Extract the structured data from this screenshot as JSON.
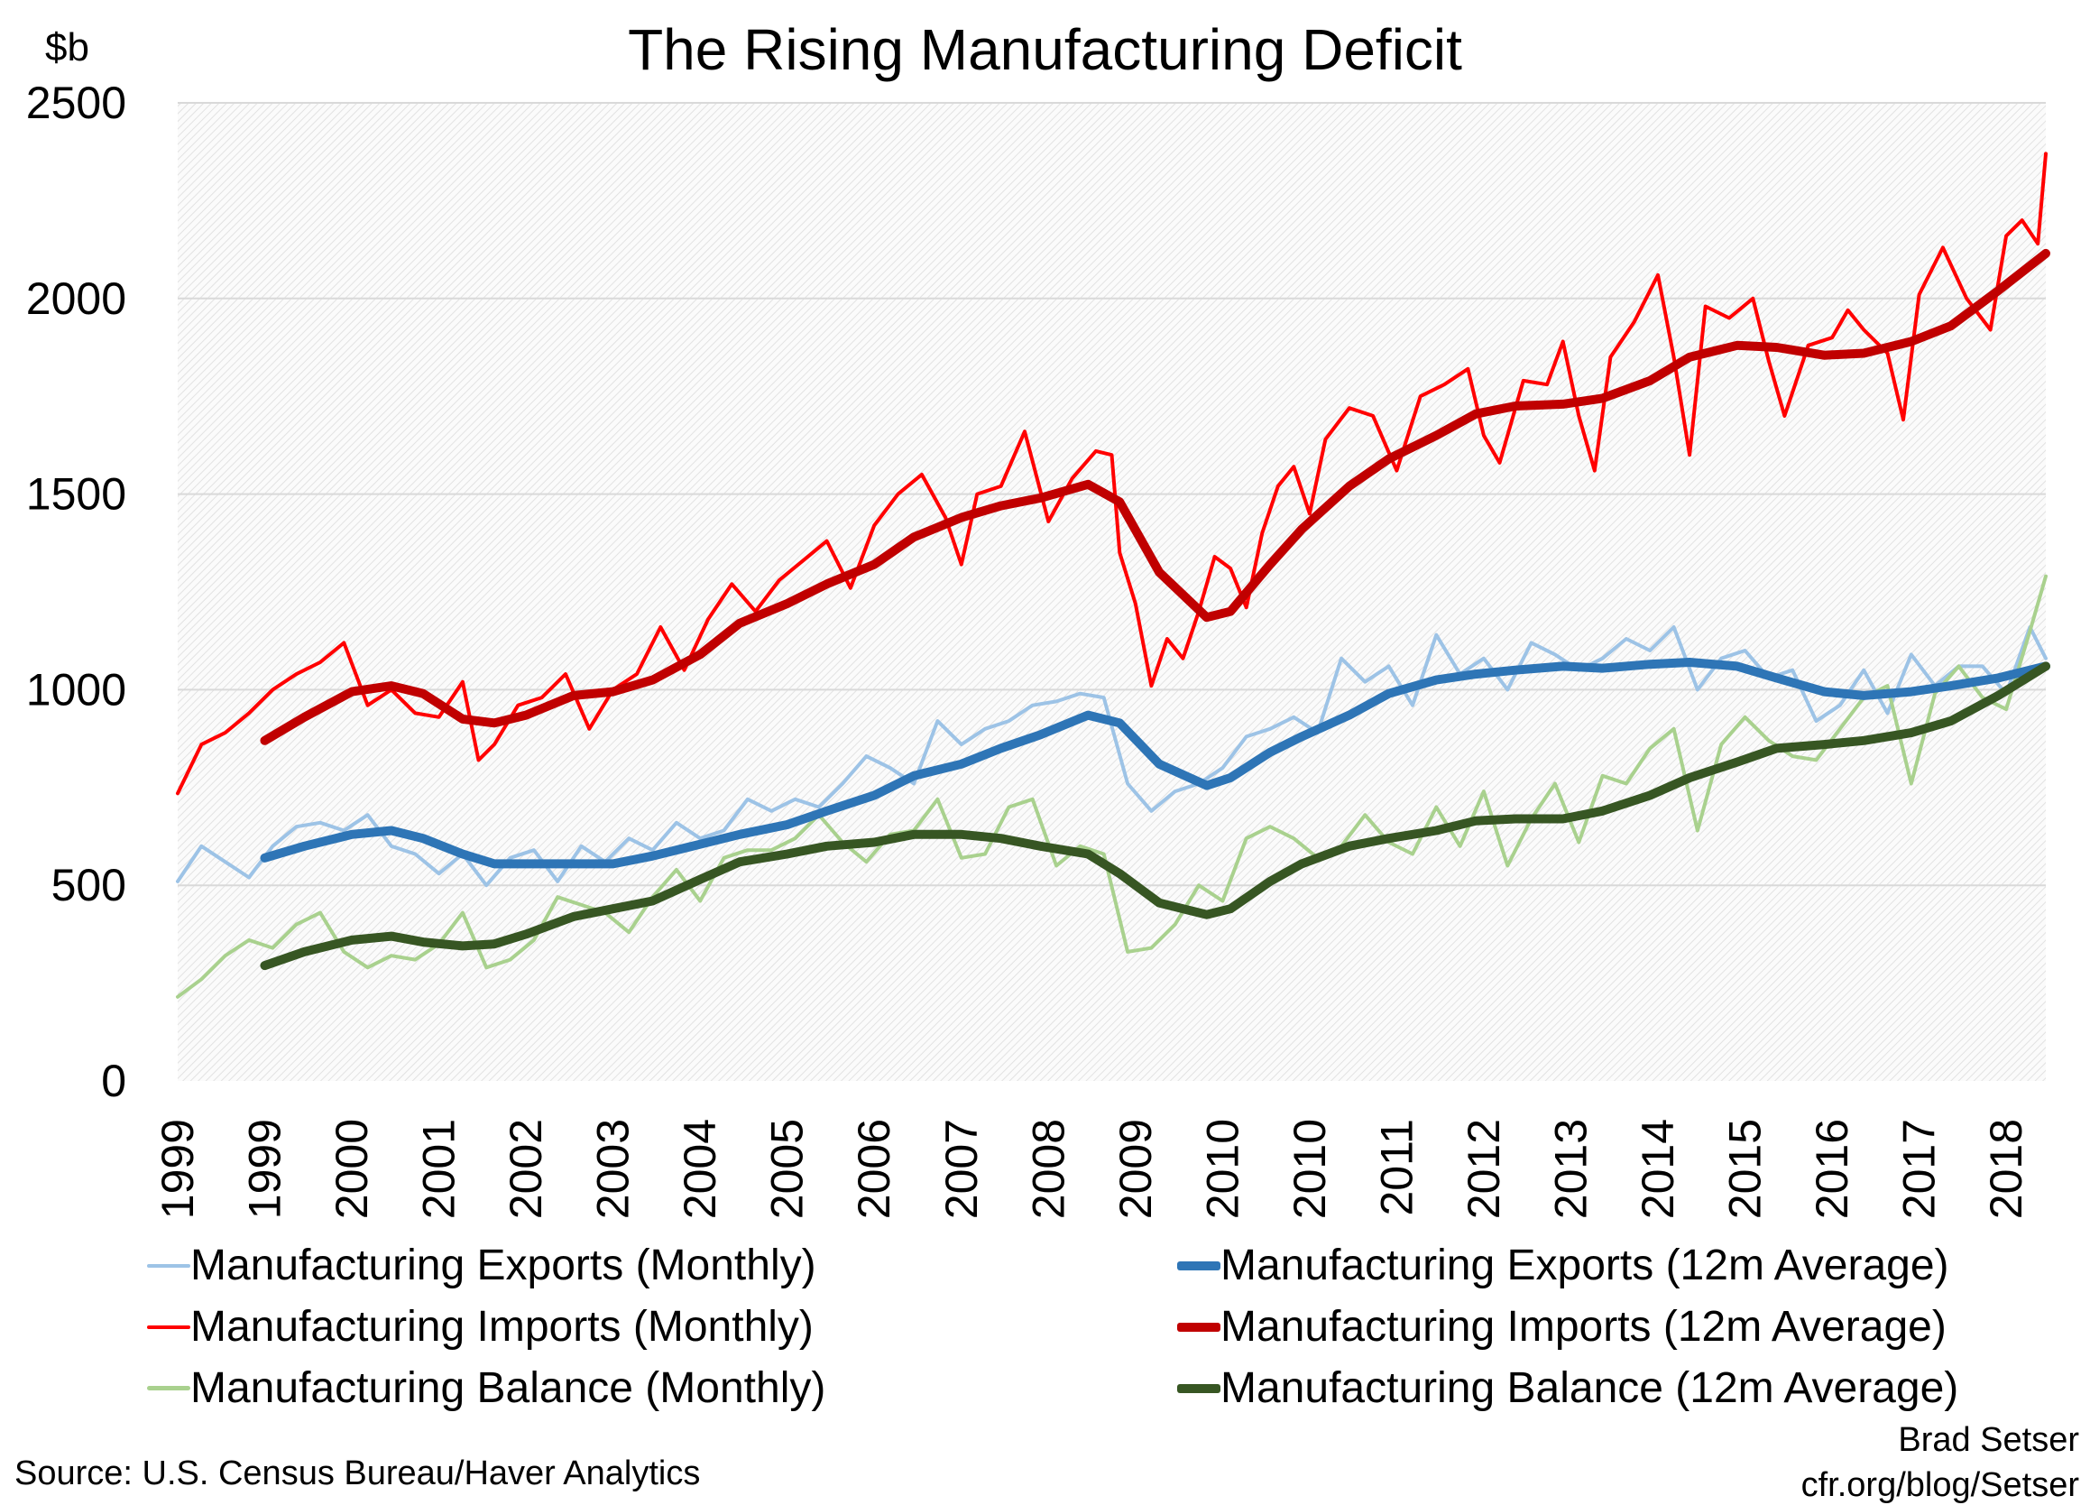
{
  "chart_data": {
    "type": "line",
    "title": "The Rising Manufacturing Deficit",
    "ylabel": "$b",
    "ylim": [
      0,
      2500
    ],
    "yticks": [
      0,
      500,
      1000,
      1500,
      2000,
      2500
    ],
    "xlim": [
      "1999-01",
      "2018-09"
    ],
    "xtick_dates": [
      "1999-01",
      "1999-12",
      "2000-11",
      "2001-10",
      "2002-09",
      "2003-08",
      "2004-07",
      "2005-06",
      "2006-05",
      "2007-04",
      "2008-03",
      "2009-02",
      "2010-01",
      "2010-12",
      "2011-11",
      "2012-10",
      "2013-09",
      "2014-08",
      "2015-07",
      "2016-06",
      "2017-05",
      "2018-04"
    ],
    "xtick_labels": [
      "1999",
      "1999",
      "2000",
      "2001",
      "2002",
      "2003",
      "2004",
      "2005",
      "2006",
      "2007",
      "2008",
      "2009",
      "2010",
      "2010",
      "2011",
      "2012",
      "2013",
      "2014",
      "2015",
      "2016",
      "2017",
      "2018"
    ],
    "grid": "horizontal",
    "legend_position": "bottom",
    "avg_dates": [
      "1999-12",
      "2000-05",
      "2000-11",
      "2001-04",
      "2001-08",
      "2002-01",
      "2002-05",
      "2002-09",
      "2003-03",
      "2003-08",
      "2004-01",
      "2004-07",
      "2004-12",
      "2005-06",
      "2005-11",
      "2006-05",
      "2006-10",
      "2007-04",
      "2007-09",
      "2008-02",
      "2008-08",
      "2008-12",
      "2009-05",
      "2009-11",
      "2010-02",
      "2010-07",
      "2010-11",
      "2011-05",
      "2011-10",
      "2012-04",
      "2012-09",
      "2013-02",
      "2013-08",
      "2014-01",
      "2014-07",
      "2014-12",
      "2015-06",
      "2015-11",
      "2016-05",
      "2016-10",
      "2017-04",
      "2017-09",
      "2018-03",
      "2018-09"
    ],
    "quarterly_dates": [
      "1999-01",
      "1999-04",
      "1999-07",
      "1999-10",
      "2000-01",
      "2000-04",
      "2000-07",
      "2000-10",
      "2001-01",
      "2001-04",
      "2001-07",
      "2001-10",
      "2002-01",
      "2002-04",
      "2002-07",
      "2002-10",
      "2003-01",
      "2003-04",
      "2003-07",
      "2003-10",
      "2004-01",
      "2004-04",
      "2004-07",
      "2004-10",
      "2005-01",
      "2005-04",
      "2005-07",
      "2005-10",
      "2006-01",
      "2006-04",
      "2006-07",
      "2006-10",
      "2007-01",
      "2007-04",
      "2007-07",
      "2007-10",
      "2008-01",
      "2008-04",
      "2008-07",
      "2008-10",
      "2009-01",
      "2009-04",
      "2009-07",
      "2009-10",
      "2010-01",
      "2010-04",
      "2010-07",
      "2010-10",
      "2011-01",
      "2011-04",
      "2011-07",
      "2011-10",
      "2012-01",
      "2012-04",
      "2012-07",
      "2012-10",
      "2013-01",
      "2013-04",
      "2013-07",
      "2013-10",
      "2014-01",
      "2014-04",
      "2014-07",
      "2014-10",
      "2015-01",
      "2015-04",
      "2015-07",
      "2015-10",
      "2016-01",
      "2016-04",
      "2016-07",
      "2016-10",
      "2017-01",
      "2017-04",
      "2017-07",
      "2017-10",
      "2018-01",
      "2018-04",
      "2018-07",
      "2018-09"
    ],
    "imports_monthly_dates": [
      "1999-01",
      "1999-04",
      "1999-07",
      "1999-10",
      "2000-01",
      "2000-04",
      "2000-07",
      "2000-10",
      "2001-01",
      "2001-04",
      "2001-07",
      "2001-10",
      "2002-01",
      "2002-03",
      "2002-05",
      "2002-08",
      "2002-11",
      "2003-02",
      "2003-05",
      "2003-08",
      "2003-11",
      "2004-02",
      "2004-05",
      "2004-08",
      "2004-11",
      "2005-02",
      "2005-05",
      "2005-08",
      "2005-11",
      "2006-02",
      "2006-05",
      "2006-08",
      "2006-11",
      "2007-02",
      "2007-04",
      "2007-06",
      "2007-09",
      "2007-12",
      "2008-03",
      "2008-06",
      "2008-09",
      "2008-11",
      "2008-12",
      "2009-02",
      "2009-04",
      "2009-06",
      "2009-08",
      "2009-10",
      "2009-12",
      "2010-02",
      "2010-04",
      "2010-06",
      "2010-08",
      "2010-10",
      "2010-12",
      "2011-02",
      "2011-05",
      "2011-08",
      "2011-11",
      "2012-02",
      "2012-05",
      "2012-08",
      "2012-10",
      "2012-12",
      "2013-03",
      "2013-06",
      "2013-08",
      "2013-10",
      "2013-12",
      "2014-02",
      "2014-05",
      "2014-08",
      "2014-10",
      "2014-12",
      "2015-02",
      "2015-05",
      "2015-08",
      "2015-10",
      "2015-12",
      "2016-03",
      "2016-06",
      "2016-08",
      "2016-10",
      "2017-01",
      "2017-03",
      "2017-05",
      "2017-08",
      "2017-11",
      "2018-02",
      "2018-04",
      "2018-06",
      "2018-08",
      "2018-09"
    ],
    "series": [
      {
        "name": "Manufacturing Exports (Monthly)",
        "color": "#9dc3e6",
        "kind": "monthly",
        "dates_key": "quarterly_dates",
        "values": [
          510,
          600,
          560,
          520,
          600,
          650,
          660,
          640,
          680,
          600,
          580,
          530,
          580,
          500,
          570,
          590,
          510,
          600,
          560,
          620,
          590,
          660,
          620,
          640,
          720,
          690,
          720,
          700,
          760,
          830,
          800,
          760,
          920,
          860,
          900,
          920,
          960,
          970,
          990,
          980,
          760,
          690,
          740,
          760,
          800,
          880,
          900,
          930,
          890,
          1080,
          1020,
          1060,
          960,
          1140,
          1040,
          1080,
          1000,
          1120,
          1090,
          1050,
          1080,
          1130,
          1100,
          1160,
          1000,
          1080,
          1100,
          1030,
          1050,
          920,
          960,
          1050,
          940,
          1090,
          1010,
          1060,
          1060,
          990,
          1160,
          1080
        ]
      },
      {
        "name": "Manufacturing Imports (Monthly)",
        "color": "#ff0000",
        "kind": "monthly",
        "dates_key": "imports_monthly_dates",
        "values": [
          735,
          860,
          890,
          940,
          1000,
          1040,
          1070,
          1120,
          960,
          1000,
          940,
          930,
          1020,
          820,
          860,
          960,
          980,
          1040,
          900,
          1000,
          1040,
          1160,
          1050,
          1180,
          1270,
          1200,
          1280,
          1330,
          1380,
          1260,
          1420,
          1500,
          1550,
          1440,
          1320,
          1500,
          1520,
          1660,
          1430,
          1540,
          1610,
          1600,
          1350,
          1220,
          1010,
          1130,
          1080,
          1200,
          1340,
          1310,
          1210,
          1400,
          1520,
          1570,
          1450,
          1640,
          1720,
          1700,
          1560,
          1750,
          1780,
          1820,
          1650,
          1580,
          1790,
          1780,
          1890,
          1700,
          1560,
          1850,
          1940,
          2060,
          1850,
          1600,
          1980,
          1950,
          2000,
          1840,
          1700,
          1880,
          1900,
          1970,
          1920,
          1860,
          1690,
          2010,
          2130,
          2000,
          1920,
          2160,
          2200,
          2140,
          2370
        ]
      },
      {
        "name": "Manufacturing Balance (Monthly)",
        "color": "#a9d18e",
        "kind": "monthly",
        "dates_key": "quarterly_dates",
        "values": [
          215,
          260,
          320,
          360,
          340,
          400,
          430,
          330,
          290,
          320,
          310,
          350,
          430,
          290,
          310,
          360,
          470,
          450,
          430,
          380,
          470,
          540,
          460,
          570,
          590,
          590,
          620,
          680,
          610,
          560,
          630,
          640,
          720,
          570,
          580,
          700,
          720,
          550,
          600,
          580,
          330,
          340,
          400,
          500,
          460,
          620,
          650,
          620,
          570,
          600,
          680,
          610,
          580,
          700,
          600,
          740,
          550,
          670,
          760,
          610,
          780,
          760,
          850,
          900,
          640,
          860,
          930,
          870,
          830,
          820,
          900,
          980,
          1010,
          760,
          990,
          1060,
          980,
          950,
          1150,
          1290
        ]
      },
      {
        "name": "Manufacturing Exports (12m Average)",
        "color": "#2e75b6",
        "kind": "average",
        "dates_key": "avg_dates",
        "values": [
          570,
          600,
          630,
          640,
          620,
          580,
          555,
          555,
          555,
          555,
          575,
          605,
          630,
          655,
          690,
          730,
          780,
          810,
          850,
          885,
          935,
          915,
          810,
          755,
          775,
          840,
          880,
          935,
          990,
          1025,
          1040,
          1050,
          1060,
          1055,
          1065,
          1070,
          1060,
          1030,
          995,
          985,
          995,
          1010,
          1030,
          1060
        ]
      },
      {
        "name": "Manufacturing Imports (12m Average)",
        "color": "#c00000",
        "kind": "average",
        "dates_key": "avg_dates",
        "values": [
          870,
          930,
          995,
          1010,
          990,
          925,
          915,
          935,
          985,
          995,
          1025,
          1090,
          1170,
          1220,
          1270,
          1320,
          1390,
          1440,
          1470,
          1490,
          1525,
          1480,
          1300,
          1185,
          1200,
          1320,
          1410,
          1520,
          1590,
          1650,
          1705,
          1725,
          1730,
          1745,
          1790,
          1850,
          1880,
          1875,
          1855,
          1860,
          1890,
          1930,
          2020,
          2115
        ]
      },
      {
        "name": "Manufacturing Balance (12m Average)",
        "color": "#375623",
        "kind": "average",
        "dates_key": "avg_dates",
        "values": [
          295,
          330,
          360,
          370,
          355,
          345,
          350,
          375,
          420,
          440,
          460,
          515,
          560,
          580,
          600,
          610,
          630,
          630,
          620,
          600,
          580,
          530,
          455,
          425,
          440,
          510,
          555,
          600,
          620,
          640,
          665,
          670,
          670,
          690,
          730,
          775,
          815,
          850,
          860,
          870,
          890,
          920,
          985,
          1060
        ]
      }
    ]
  },
  "source": "Source: U.S. Census Bureau/Haver Analytics",
  "credit": {
    "author": "Brad Setser",
    "url": "cfr.org/blog/Setser"
  }
}
